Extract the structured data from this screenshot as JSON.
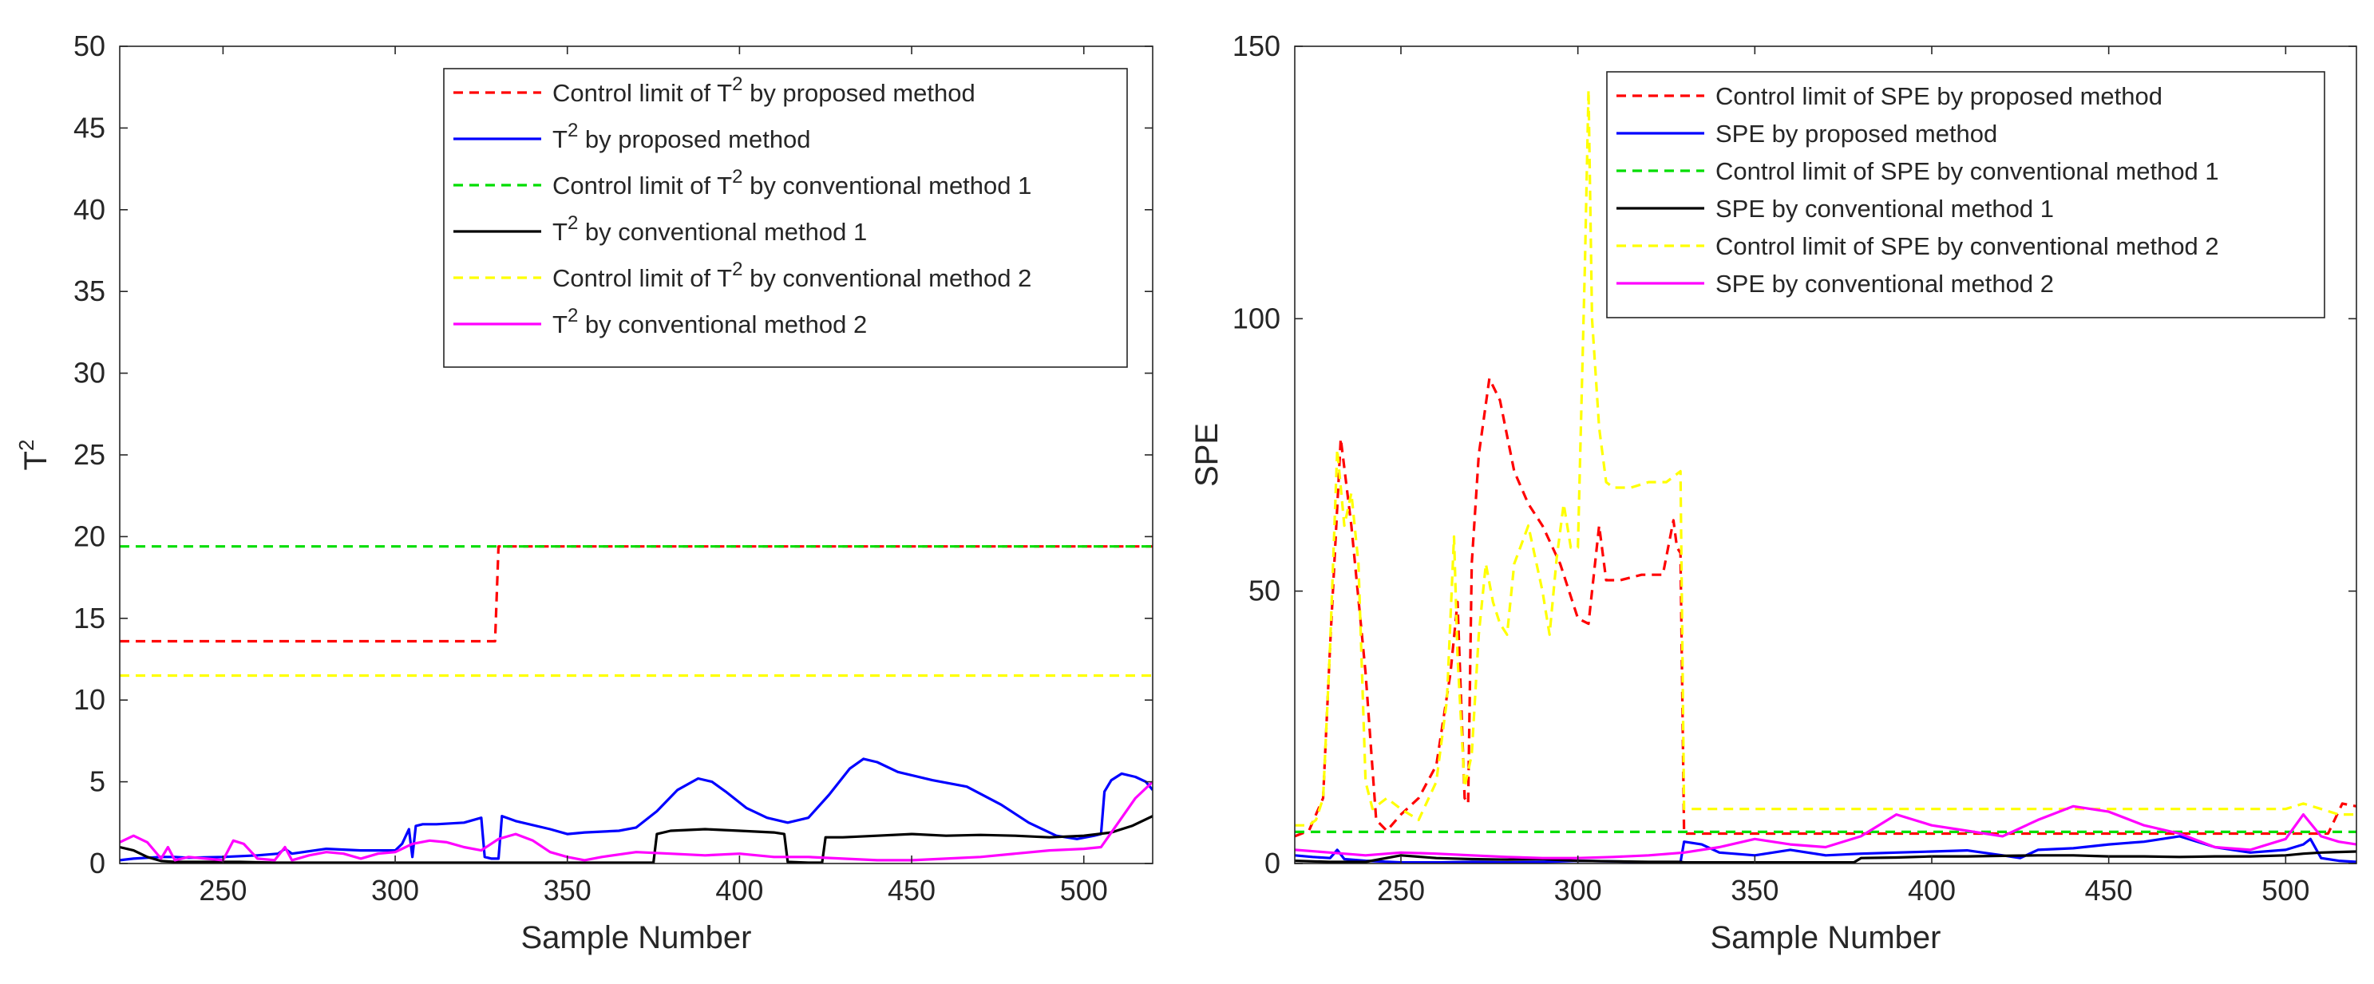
{
  "chart_data": [
    {
      "type": "line",
      "xlabel": "Sample Number",
      "ylabel": "T",
      "ylabel_sup": "2",
      "xlim": [
        220,
        520
      ],
      "ylim": [
        0,
        50
      ],
      "xticks": [
        250,
        300,
        350,
        400,
        450,
        500
      ],
      "yticks": [
        0,
        5,
        10,
        15,
        20,
        25,
        30,
        35,
        40,
        45,
        50
      ],
      "legend_position": "top-right",
      "series": [
        {
          "name": "Control limit of T² by proposed method",
          "label": "Control limit of T",
          "sup": "2",
          "suffix": " by proposed method",
          "color": "#ff0000",
          "dashed": true,
          "x": [
            220,
            329,
            330,
            520
          ],
          "y": [
            13.6,
            13.6,
            19.4,
            19.4
          ]
        },
        {
          "name": "T² by proposed method",
          "label": "T",
          "sup": "2",
          "suffix": " by proposed method",
          "color": "#0000ff",
          "dashed": false,
          "x": [
            220,
            224,
            228,
            232,
            236,
            240,
            250,
            260,
            266,
            268,
            270,
            280,
            290,
            300,
            302,
            304,
            305,
            306,
            308,
            312,
            320,
            325,
            326,
            328,
            330,
            331,
            335,
            345,
            350,
            355,
            365,
            370,
            376,
            382,
            388,
            392,
            396,
            402,
            408,
            414,
            420,
            426,
            432,
            436,
            440,
            446,
            456,
            466,
            476,
            484,
            492,
            498,
            503,
            505,
            506,
            508,
            511,
            515,
            518,
            520
          ],
          "y": [
            0.2,
            0.3,
            0.35,
            0.4,
            0.4,
            0.35,
            0.4,
            0.5,
            0.6,
            0.9,
            0.6,
            0.9,
            0.8,
            0.8,
            1.2,
            2.1,
            0.4,
            2.3,
            2.4,
            2.4,
            2.5,
            2.8,
            0.4,
            0.3,
            0.3,
            2.9,
            2.6,
            2.1,
            1.8,
            1.9,
            2.0,
            2.2,
            3.2,
            4.5,
            5.2,
            5.0,
            4.4,
            3.4,
            2.8,
            2.5,
            2.8,
            4.2,
            5.8,
            6.4,
            6.2,
            5.6,
            5.1,
            4.7,
            3.6,
            2.5,
            1.7,
            1.5,
            1.7,
            1.8,
            4.4,
            5.1,
            5.5,
            5.3,
            5.0,
            4.5
          ]
        },
        {
          "name": "Control limit of T² by conventional method 1",
          "label": "Control limit of T",
          "sup": "2",
          "suffix": " by conventional method 1",
          "color": "#00dd00",
          "dashed": true,
          "x": [
            220,
            520
          ],
          "y": [
            19.4,
            19.4
          ]
        },
        {
          "name": "T² by conventional method 1",
          "label": "T",
          "sup": "2",
          "suffix": " by conventional method 1",
          "color": "#000000",
          "dashed": false,
          "x": [
            220,
            224,
            228,
            232,
            236,
            245,
            255,
            265,
            275,
            285,
            295,
            300,
            305,
            310,
            320,
            330,
            340,
            350,
            360,
            370,
            375,
            376,
            380,
            390,
            400,
            410,
            413,
            414,
            420,
            424,
            425,
            430,
            440,
            450,
            460,
            470,
            480,
            490,
            500,
            508,
            514,
            520
          ],
          "y": [
            1.0,
            0.8,
            0.4,
            0.15,
            0.1,
            0.1,
            0.1,
            0.05,
            0.05,
            0.05,
            0.05,
            0.05,
            0.05,
            0.05,
            0.05,
            0.05,
            0.05,
            0.05,
            0.05,
            0.05,
            0.05,
            1.8,
            2.0,
            2.1,
            2.0,
            1.9,
            1.8,
            0.1,
            0.05,
            0.05,
            1.6,
            1.6,
            1.7,
            1.8,
            1.7,
            1.75,
            1.7,
            1.6,
            1.7,
            1.9,
            2.3,
            2.9
          ]
        },
        {
          "name": "Control limit of T² by conventional method 2",
          "label": "Control limit of T",
          "sup": "2",
          "suffix": " by conventional method 2",
          "color": "#ffff00",
          "dashed": true,
          "x": [
            220,
            520
          ],
          "y": [
            11.5,
            11.5
          ]
        },
        {
          "name": "T² by conventional method 2",
          "label": "T",
          "sup": "2",
          "suffix": " by conventional method 2",
          "color": "#ff00ff",
          "dashed": false,
          "x": [
            220,
            224,
            228,
            232,
            234,
            236,
            240,
            245,
            250,
            253,
            256,
            260,
            265,
            268,
            270,
            275,
            280,
            285,
            290,
            295,
            300,
            305,
            310,
            315,
            320,
            325,
            330,
            335,
            340,
            345,
            350,
            355,
            360,
            370,
            380,
            390,
            400,
            410,
            420,
            430,
            440,
            450,
            460,
            470,
            480,
            490,
            500,
            505,
            510,
            515,
            520
          ],
          "y": [
            1.3,
            1.7,
            1.3,
            0.3,
            1.0,
            0.2,
            0.4,
            0.3,
            0.2,
            1.4,
            1.2,
            0.3,
            0.2,
            1.0,
            0.2,
            0.5,
            0.7,
            0.6,
            0.3,
            0.6,
            0.7,
            1.2,
            1.4,
            1.3,
            1.0,
            0.8,
            1.5,
            1.8,
            1.4,
            0.7,
            0.4,
            0.2,
            0.4,
            0.7,
            0.6,
            0.5,
            0.6,
            0.4,
            0.4,
            0.3,
            0.2,
            0.2,
            0.3,
            0.4,
            0.6,
            0.8,
            0.9,
            1.0,
            2.5,
            4.0,
            5.0
          ]
        }
      ]
    },
    {
      "type": "line",
      "xlabel": "Sample Number",
      "ylabel": "SPE",
      "xlim": [
        220,
        520
      ],
      "ylim": [
        0,
        150
      ],
      "xticks": [
        250,
        300,
        350,
        400,
        450,
        500
      ],
      "yticks": [
        0,
        50,
        100,
        150
      ],
      "legend_position": "top-right",
      "series": [
        {
          "name": "Control limit of SPE by proposed method",
          "label": "Control limit of SPE by proposed method",
          "color": "#ff0000",
          "dashed": true,
          "x": [
            220,
            224,
            228,
            230,
            233,
            236,
            240,
            243,
            246,
            250,
            255,
            260,
            264,
            266,
            268,
            269,
            270,
            272,
            275,
            278,
            282,
            286,
            290,
            295,
            300,
            303,
            306,
            308,
            312,
            318,
            324,
            327,
            328,
            329,
            330,
            340,
            350,
            400,
            450,
            500,
            512,
            516,
            520
          ],
          "y": [
            5,
            6,
            12,
            40,
            78,
            62,
            35,
            8,
            6,
            9,
            12,
            18,
            35,
            48,
            12,
            11,
            55,
            75,
            89,
            85,
            72,
            66,
            62,
            55,
            45,
            44,
            62,
            52,
            52,
            53,
            53,
            63,
            58,
            57,
            5.5,
            5.5,
            5.5,
            5.5,
            5.5,
            5.5,
            5.5,
            11,
            10.5
          ]
        },
        {
          "name": "SPE by proposed method",
          "label": "SPE by proposed method",
          "color": "#0000ff",
          "dashed": false,
          "x": [
            220,
            225,
            230,
            232,
            234,
            240,
            250,
            260,
            270,
            280,
            290,
            300,
            310,
            320,
            329,
            330,
            335,
            340,
            350,
            360,
            370,
            380,
            390,
            400,
            410,
            420,
            425,
            430,
            440,
            450,
            460,
            470,
            480,
            490,
            500,
            505,
            507,
            510,
            515,
            520
          ],
          "y": [
            1.5,
            1.2,
            1.0,
            2.5,
            0.8,
            0.5,
            0.2,
            0.2,
            0.3,
            0.2,
            0.3,
            0.5,
            0.4,
            0.2,
            0.2,
            4.0,
            3.5,
            2.0,
            1.5,
            2.5,
            1.5,
            1.8,
            2.0,
            2.2,
            2.4,
            1.5,
            1.0,
            2.5,
            2.8,
            3.5,
            4.0,
            5.0,
            3.0,
            2.0,
            2.5,
            3.5,
            4.5,
            1.0,
            0.5,
            0.3
          ]
        },
        {
          "name": "Control limit of SPE by conventional method 1",
          "label": "Control limit of SPE by conventional method 1",
          "color": "#00dd00",
          "dashed": true,
          "x": [
            220,
            520
          ],
          "y": [
            5.8,
            5.8
          ]
        },
        {
          "name": "SPE by conventional method 1",
          "label": "SPE by conventional method 1",
          "color": "#000000",
          "dashed": false,
          "x": [
            220,
            230,
            240,
            250,
            260,
            270,
            280,
            290,
            300,
            310,
            320,
            329,
            330,
            340,
            350,
            360,
            370,
            378,
            380,
            390,
            400,
            410,
            420,
            430,
            440,
            450,
            460,
            470,
            480,
            490,
            500,
            505,
            510,
            520
          ],
          "y": [
            0.5,
            0.3,
            0.3,
            1.5,
            1.0,
            0.8,
            0.7,
            0.8,
            0.5,
            0.4,
            0.3,
            0.3,
            0.2,
            0.2,
            0.2,
            0.2,
            0.2,
            0.2,
            1.0,
            1.1,
            1.3,
            1.3,
            1.4,
            1.5,
            1.5,
            1.3,
            1.3,
            1.2,
            1.3,
            1.3,
            1.5,
            1.8,
            2.0,
            2.2
          ]
        },
        {
          "name": "Control limit of SPE by conventional method 2",
          "label": "Control limit of SPE by conventional method 2",
          "color": "#ffff00",
          "dashed": true,
          "x": [
            220,
            224,
            226,
            228,
            230,
            232,
            234,
            236,
            238,
            240,
            242,
            244,
            246,
            250,
            255,
            260,
            263,
            265,
            266,
            268,
            270,
            272,
            274,
            276,
            278,
            280,
            282,
            286,
            290,
            292,
            294,
            296,
            298,
            300,
            302,
            303,
            304,
            306,
            308,
            310,
            315,
            320,
            325,
            329,
            330,
            340,
            350,
            400,
            450,
            500,
            505,
            510,
            515,
            520
          ],
          "y": [
            7,
            7,
            8,
            12,
            40,
            76,
            62,
            68,
            55,
            15,
            10,
            11,
            12,
            10,
            8,
            15,
            30,
            60,
            38,
            14,
            20,
            42,
            55,
            48,
            44,
            42,
            55,
            62,
            50,
            42,
            56,
            66,
            58,
            58,
            110,
            142,
            100,
            80,
            70,
            69,
            69,
            70,
            70,
            72,
            10,
            10,
            10,
            10,
            10,
            10,
            11,
            10,
            9,
            9
          ]
        },
        {
          "name": "SPE by conventional method 2",
          "label": "SPE by conventional method 2",
          "color": "#ff00ff",
          "dashed": false,
          "x": [
            220,
            230,
            240,
            250,
            260,
            270,
            280,
            290,
            300,
            310,
            320,
            330,
            340,
            350,
            360,
            370,
            380,
            390,
            400,
            410,
            420,
            430,
            440,
            450,
            460,
            470,
            480,
            490,
            500,
            505,
            510,
            515,
            520
          ],
          "y": [
            2.5,
            2.0,
            1.5,
            2.0,
            1.8,
            1.5,
            1.2,
            1.0,
            1.0,
            1.2,
            1.5,
            2.0,
            3.0,
            4.5,
            3.5,
            3.0,
            5.0,
            9.0,
            7.0,
            6.0,
            5.0,
            8.0,
            10.5,
            9.5,
            7.0,
            5.5,
            3.0,
            2.5,
            4.5,
            9.0,
            5.0,
            4.0,
            3.5
          ]
        }
      ]
    }
  ]
}
